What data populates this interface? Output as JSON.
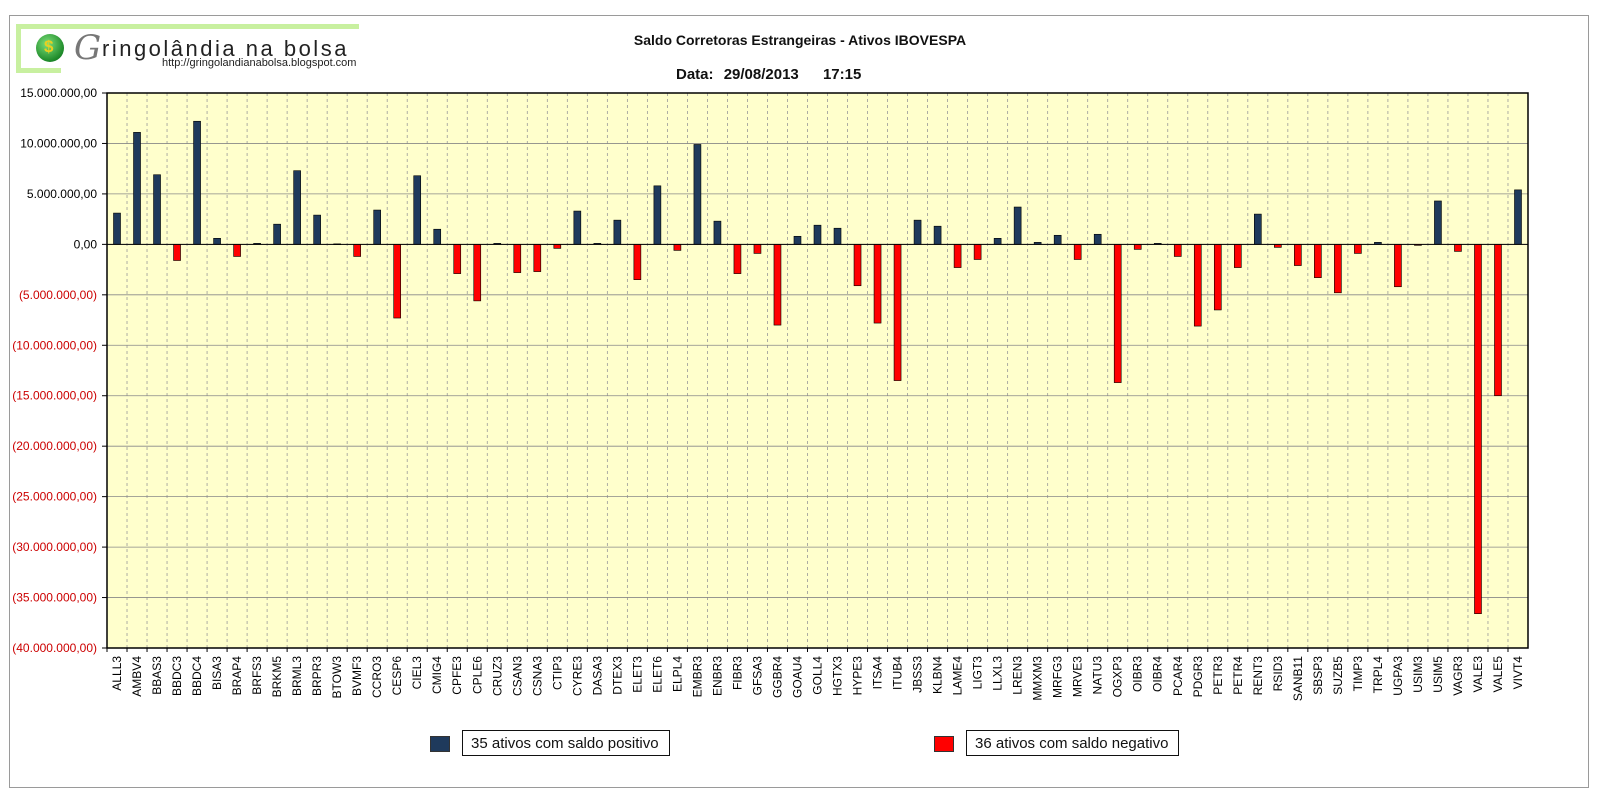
{
  "logo": {
    "brand_initial": "G",
    "brand_rest": "ringolândia na bolsa",
    "url": "http://gringolandianabolsa.blogspot.com",
    "globe_symbol": "$"
  },
  "header": {
    "title": "Saldo Corretoras Estrangeiras - Ativos IBOVESPA",
    "date_label": "Data:",
    "date": "29/08/2013",
    "time": "17:15"
  },
  "legend": {
    "positive_label": "35 ativos com saldo positivo",
    "negative_label": "36 ativos com saldo negativo"
  },
  "colors": {
    "positive": "#1f3a5c",
    "negative": "#ff0000",
    "plot_bg": "#ffffcc",
    "negative_tick": "#cc0000"
  },
  "chart_data": {
    "type": "bar",
    "title": "Saldo Corretoras Estrangeiras - Ativos IBOVESPA",
    "xlabel": "",
    "ylabel": "",
    "ylim": [
      -40000000,
      15000000
    ],
    "yticks": [
      15000000,
      10000000,
      5000000,
      0,
      -5000000,
      -10000000,
      -15000000,
      -20000000,
      -25000000,
      -30000000,
      -35000000,
      -40000000
    ],
    "ytick_labels": [
      "15.000.000,00",
      "10.000.000,00",
      "5.000.000,00",
      "0,00",
      "(5.000.000,00)",
      "(10.000.000,00)",
      "(15.000.000,00)",
      "(20.000.000,00)",
      "(25.000.000,00)",
      "(30.000.000,00)",
      "(35.000.000,00)",
      "(40.000.000,00)"
    ],
    "grid": true,
    "categories": [
      "ALLL3",
      "AMBV4",
      "BBAS3",
      "BBDC3",
      "BBDC4",
      "BISA3",
      "BRAP4",
      "BRFS3",
      "BRKM5",
      "BRML3",
      "BRPR3",
      "BTOW3",
      "BVMF3",
      "CCRO3",
      "CESP6",
      "CIEL3",
      "CMIG4",
      "CPFE3",
      "CPLE6",
      "CRUZ3",
      "CSAN3",
      "CSNA3",
      "CTIP3",
      "CYRE3",
      "DASA3",
      "DTEX3",
      "ELET3",
      "ELET6",
      "ELPL4",
      "EMBR3",
      "ENBR3",
      "FIBR3",
      "GFSA3",
      "GGBR4",
      "GOAU4",
      "GOLL4",
      "HGTX3",
      "HYPE3",
      "ITSA4",
      "ITUB4",
      "JBSS3",
      "KLBN4",
      "LAME4",
      "LIGT3",
      "LLXL3",
      "LREN3",
      "MMXM3",
      "MRFG3",
      "MRVE3",
      "NATU3",
      "OGXP3",
      "OIBR3",
      "OIBR4",
      "PCAR4",
      "PDGR3",
      "PETR3",
      "PETR4",
      "RENT3",
      "RSID3",
      "SANB11",
      "SBSP3",
      "SUZB5",
      "TIMP3",
      "TRPL4",
      "UGPA3",
      "USIM3",
      "USIM5",
      "VAGR3",
      "VALE3",
      "VALE5",
      "VIVT4"
    ],
    "values": [
      3100000,
      11100000,
      6900000,
      -1600000,
      12200000,
      600000,
      -1200000,
      100000,
      2000000,
      7300000,
      2900000,
      50000,
      -1200000,
      3400000,
      -7300000,
      6800000,
      1500000,
      -2900000,
      -5600000,
      100000,
      -2800000,
      -2700000,
      -400000,
      3300000,
      100000,
      2400000,
      -3500000,
      5800000,
      -600000,
      9900000,
      2300000,
      -2900000,
      -900000,
      -8000000,
      800000,
      1900000,
      1600000,
      -4100000,
      -7800000,
      -13500000,
      2400000,
      1800000,
      -2300000,
      -1500000,
      600000,
      3700000,
      200000,
      900000,
      -1500000,
      1000000,
      -13700000,
      -500000,
      100000,
      -1200000,
      -8100000,
      -6500000,
      -2300000,
      3000000,
      -300000,
      -2100000,
      -3300000,
      -4800000,
      -900000,
      200000,
      -4200000,
      -100000,
      4300000,
      -700000,
      -36600000,
      -15000000,
      5400000
    ]
  }
}
